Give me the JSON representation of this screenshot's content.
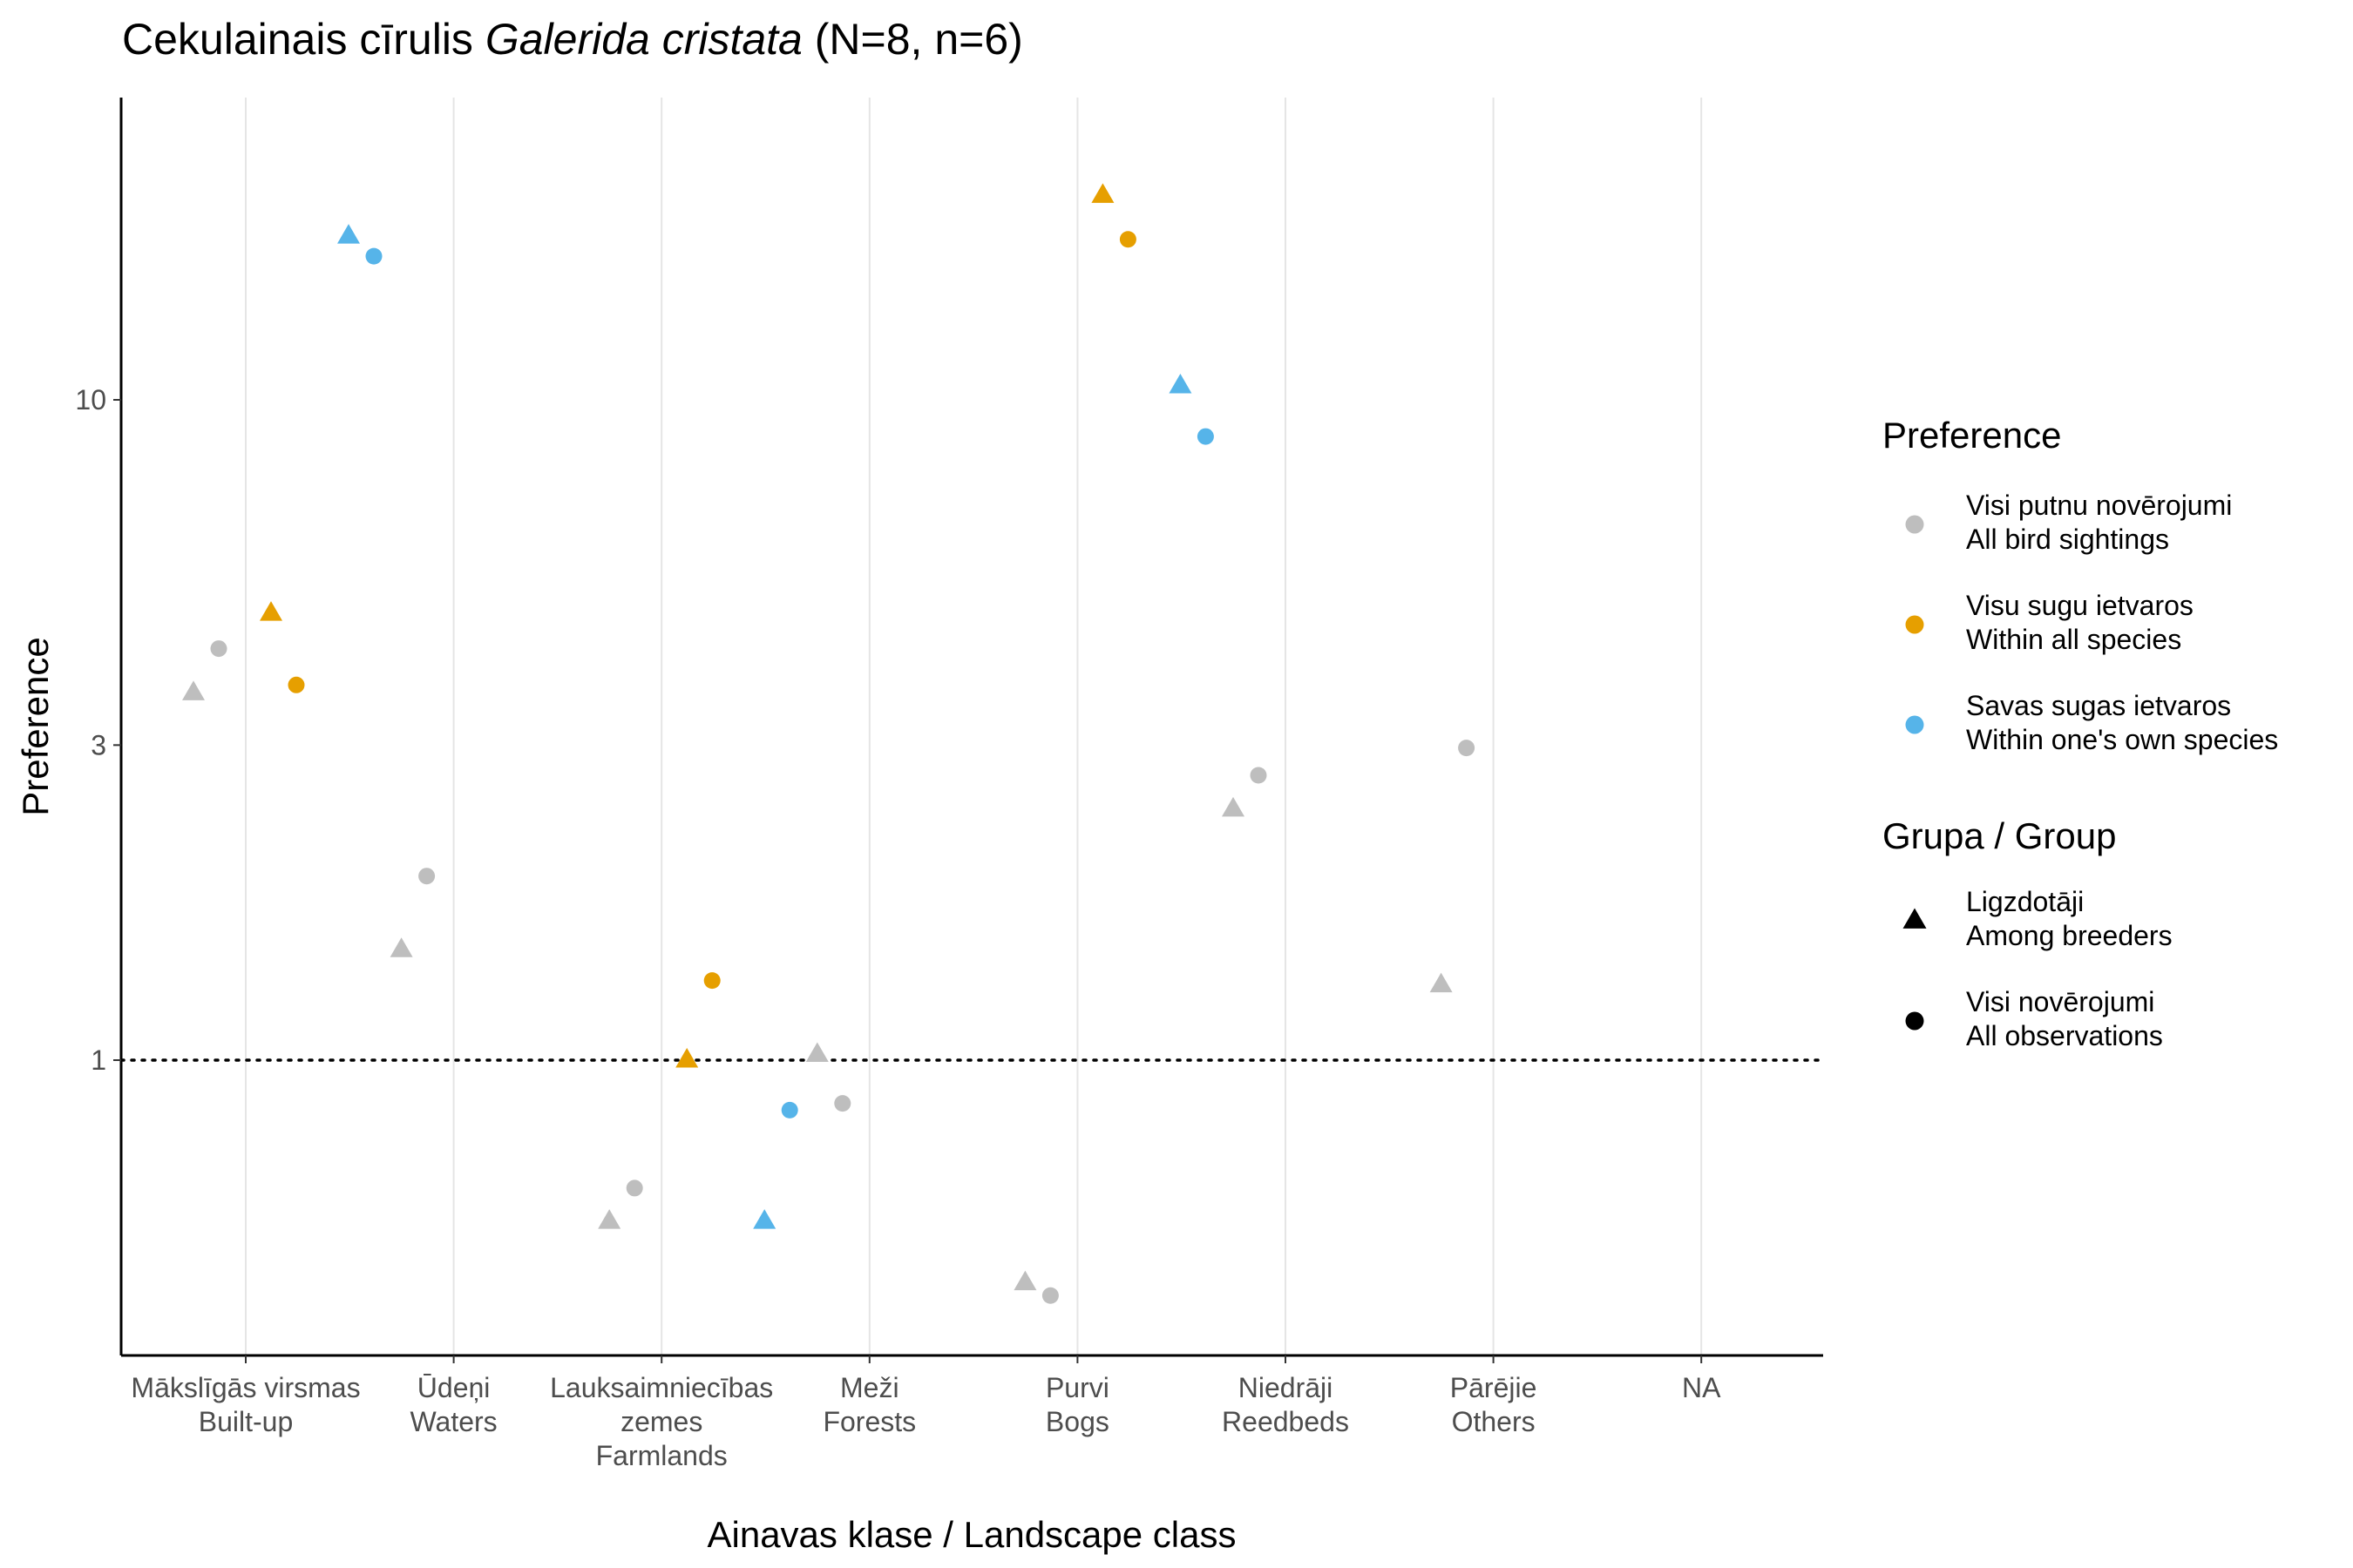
{
  "chart_data": {
    "type": "scatter",
    "title_prefix": "Cekulainais cīrulis ",
    "title_species": "Galerida cristata",
    "title_suffix": " (N=8, n=6)",
    "xlabel": "Ainavas klase / Landscape class",
    "ylabel": "Preference",
    "y_scale": "log",
    "ylim": [
      0.27,
      22
    ],
    "y_ticks": [
      {
        "value": 1,
        "label": "1"
      },
      {
        "value": 3,
        "label": "3"
      },
      {
        "value": 10,
        "label": "10"
      }
    ],
    "reference_line": 1,
    "grid": "vertical major only",
    "categories": [
      {
        "line1": "Mākslīgās virsmas",
        "line2": "Built-up",
        "line3": ""
      },
      {
        "line1": "Ūdeņi",
        "line2": "Waters",
        "line3": ""
      },
      {
        "line1": "Lauksaimniecības",
        "line2": "zemes",
        "line3": "Farmlands"
      },
      {
        "line1": "Meži",
        "line2": "Forests",
        "line3": ""
      },
      {
        "line1": "Purvi",
        "line2": "Bogs",
        "line3": ""
      },
      {
        "line1": "Niedrāji",
        "line2": "Reedbeds",
        "line3": ""
      },
      {
        "line1": "Pārējie",
        "line2": "Others",
        "line3": ""
      },
      {
        "line1": "NA",
        "line2": "",
        "line3": ""
      }
    ],
    "preference_legend": {
      "title": "Preference",
      "items": [
        {
          "key": "all_sightings",
          "line1": "Visi putnu novērojumi",
          "line2": "All bird sightings",
          "color": "#BEBEBE"
        },
        {
          "key": "all_species",
          "line1": "Visu sugu ietvaros",
          "line2": "Within all species",
          "color": "#E69F00"
        },
        {
          "key": "own_species",
          "line1": "Savas sugas ietvaros",
          "line2": "Within one's own species",
          "color": "#56B4E9"
        }
      ]
    },
    "group_legend": {
      "title": "Grupa / Group",
      "items": [
        {
          "key": "breeders",
          "line1": "Ligzdotāji",
          "line2": "Among breeders",
          "shape": "triangle"
        },
        {
          "key": "all_obs",
          "line1": "Visi novērojumi",
          "line2": "All observations",
          "shape": "circle"
        }
      ]
    },
    "points": [
      {
        "category": "Mākslīgās virsmas",
        "preference": "all_sightings",
        "group": "breeders",
        "y": 3.6
      },
      {
        "category": "Mākslīgās virsmas",
        "preference": "all_sightings",
        "group": "all_obs",
        "y": 4.2
      },
      {
        "category": "Mākslīgās virsmas",
        "preference": "all_species",
        "group": "breeders",
        "y": 4.75
      },
      {
        "category": "Mākslīgās virsmas",
        "preference": "all_species",
        "group": "all_obs",
        "y": 3.7
      },
      {
        "category": "Mākslīgās virsmas",
        "preference": "own_species",
        "group": "breeders",
        "y": 17.7
      },
      {
        "category": "Mākslīgās virsmas",
        "preference": "own_species",
        "group": "all_obs",
        "y": 16.5
      },
      {
        "category": "Ūdeņi",
        "preference": "all_sightings",
        "group": "breeders",
        "y": 1.47
      },
      {
        "category": "Ūdeņi",
        "preference": "all_sightings",
        "group": "all_obs",
        "y": 1.9
      },
      {
        "category": "Lauksaimniecības zemes",
        "preference": "all_sightings",
        "group": "breeders",
        "y": 0.57
      },
      {
        "category": "Lauksaimniecības zemes",
        "preference": "all_sightings",
        "group": "all_obs",
        "y": 0.64
      },
      {
        "category": "Lauksaimniecības zemes",
        "preference": "all_species",
        "group": "breeders",
        "y": 1.0
      },
      {
        "category": "Lauksaimniecības zemes",
        "preference": "all_species",
        "group": "all_obs",
        "y": 1.32
      },
      {
        "category": "Lauksaimniecības zemes",
        "preference": "own_species",
        "group": "breeders",
        "y": 0.57
      },
      {
        "category": "Lauksaimniecības zemes",
        "preference": "own_species",
        "group": "all_obs",
        "y": 0.84
      },
      {
        "category": "Meži",
        "preference": "all_sightings",
        "group": "breeders",
        "y": 1.02
      },
      {
        "category": "Meži",
        "preference": "all_sightings",
        "group": "all_obs",
        "y": 0.86
      },
      {
        "category": "Purvi",
        "preference": "all_sightings",
        "group": "breeders",
        "y": 0.46
      },
      {
        "category": "Purvi",
        "preference": "all_sightings",
        "group": "all_obs",
        "y": 0.44
      },
      {
        "category": "Purvi",
        "preference": "all_species",
        "group": "breeders",
        "y": 20.4
      },
      {
        "category": "Purvi",
        "preference": "all_species",
        "group": "all_obs",
        "y": 17.5
      },
      {
        "category": "Purvi",
        "preference": "own_species",
        "group": "breeders",
        "y": 10.5
      },
      {
        "category": "Purvi",
        "preference": "own_species",
        "group": "all_obs",
        "y": 8.8
      },
      {
        "category": "Niedrāji",
        "preference": "all_sightings",
        "group": "breeders",
        "y": 2.4
      },
      {
        "category": "Niedrāji",
        "preference": "all_sightings",
        "group": "all_obs",
        "y": 2.7
      },
      {
        "category": "Pārējie",
        "preference": "all_sightings",
        "group": "breeders",
        "y": 1.3
      },
      {
        "category": "Pārējie",
        "preference": "all_sightings",
        "group": "all_obs",
        "y": 2.97
      }
    ]
  }
}
